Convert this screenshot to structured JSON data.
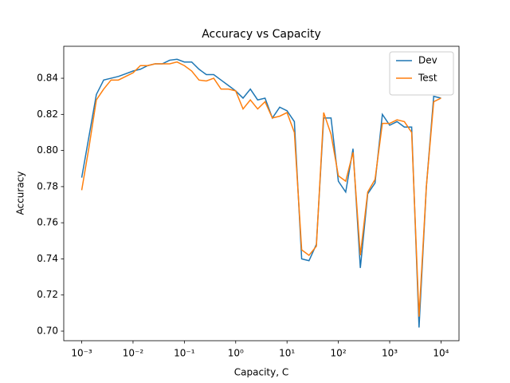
{
  "chart_data": {
    "type": "line",
    "title": "Accuracy vs Capacity",
    "x_label": "Capacity, C",
    "y_label": "Accuracy",
    "x_scale": "log",
    "x": [
      0.001,
      0.00139,
      0.00193,
      0.00268,
      0.00373,
      0.00518,
      0.0072,
      0.01,
      0.0139,
      0.0193,
      0.0268,
      0.0373,
      0.0518,
      0.072,
      0.1,
      0.139,
      0.193,
      0.268,
      0.373,
      0.518,
      0.72,
      1,
      1.39,
      1.93,
      2.68,
      3.73,
      5.18,
      7.2,
      10,
      13.9,
      19.3,
      26.8,
      37.3,
      51.8,
      72,
      100,
      139,
      193,
      268,
      373,
      518,
      720,
      1000,
      1390,
      1930,
      2680,
      3730,
      5180,
      7200,
      10000
    ],
    "series": [
      {
        "name": "Dev",
        "color": "#1f77b4",
        "values": [
          0.785,
          0.808,
          0.831,
          0.839,
          0.84,
          0.841,
          0.8425,
          0.844,
          0.845,
          0.847,
          0.848,
          0.848,
          0.85,
          0.8505,
          0.849,
          0.849,
          0.845,
          0.842,
          0.842,
          0.839,
          0.836,
          0.833,
          0.829,
          0.834,
          0.828,
          0.829,
          0.818,
          0.824,
          0.822,
          0.816,
          0.74,
          0.739,
          0.748,
          0.818,
          0.818,
          0.783,
          0.777,
          0.801,
          0.735,
          0.776,
          0.782,
          0.82,
          0.814,
          0.816,
          0.813,
          0.813,
          0.702,
          0.78,
          0.83,
          0.829
        ]
      },
      {
        "name": "Test",
        "color": "#ff7f0e",
        "values": [
          0.778,
          0.802,
          0.828,
          0.834,
          0.839,
          0.839,
          0.841,
          0.843,
          0.847,
          0.847,
          0.848,
          0.848,
          0.848,
          0.849,
          0.847,
          0.844,
          0.839,
          0.8385,
          0.84,
          0.834,
          0.834,
          0.833,
          0.823,
          0.828,
          0.823,
          0.827,
          0.818,
          0.819,
          0.821,
          0.81,
          0.745,
          0.742,
          0.747,
          0.821,
          0.809,
          0.786,
          0.783,
          0.799,
          0.742,
          0.777,
          0.784,
          0.815,
          0.815,
          0.817,
          0.816,
          0.81,
          0.708,
          0.78,
          0.827,
          0.829
        ]
      }
    ],
    "xlim": [
      0.000447,
      22400
    ],
    "ylim": [
      0.6947,
      0.8577
    ],
    "xticks": [
      {
        "value": 0.001,
        "label": "10⁻³"
      },
      {
        "value": 0.01,
        "label": "10⁻²"
      },
      {
        "value": 0.1,
        "label": "10⁻¹"
      },
      {
        "value": 1,
        "label": "10⁰"
      },
      {
        "value": 10,
        "label": "10¹"
      },
      {
        "value": 100,
        "label": "10²"
      },
      {
        "value": 1000,
        "label": "10³"
      },
      {
        "value": 10000,
        "label": "10⁴"
      }
    ],
    "yticks": [
      {
        "value": 0.7,
        "label": "0.70"
      },
      0.72,
      0.74,
      0.76,
      0.78,
      {
        "value": 0.8,
        "label": "0.80"
      },
      0.82,
      0.84
    ],
    "grid": false,
    "legend": "upper right"
  }
}
